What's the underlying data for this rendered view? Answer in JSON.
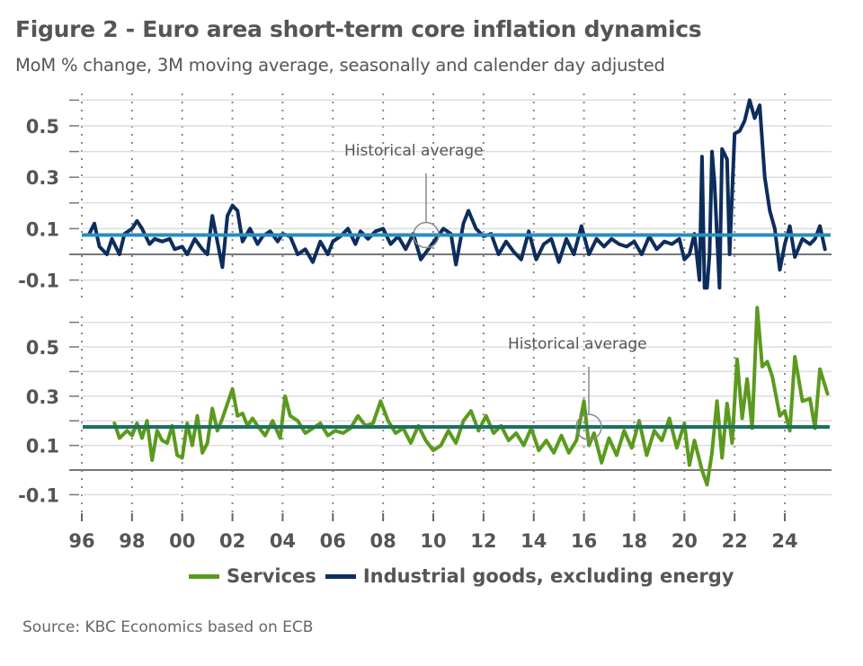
{
  "title": "Figure 2 - Euro area short-term core inflation dynamics",
  "subtitle": "MoM % change, 3M moving average, seasonally and calender day adjusted",
  "source": "Source: KBC Economics based on ECB",
  "colors": {
    "services": "#5b9a1e",
    "services_avg": "#1c7161",
    "industrial": "#0d2d5c",
    "industrial_avg": "#2a8cc0",
    "zero_line": "#777777",
    "grid": "#dddddd",
    "text": "#555555"
  },
  "legend": [
    {
      "label": "Services",
      "color": "#5b9a1e"
    },
    {
      "label": "Industrial goods, excluding energy",
      "color": "#0d2d5c"
    }
  ],
  "chart_data": [
    {
      "type": "line",
      "panel": "top",
      "title": "Industrial goods, excluding energy",
      "xlabel": "",
      "ylabel": "",
      "xlim": [
        1996,
        2026
      ],
      "ylim": [
        -0.15,
        0.6
      ],
      "yticks": [
        0.5,
        0.3,
        0.1,
        -0.1
      ],
      "ytick_labels": [
        "0.5",
        "0.3",
        "0.1",
        "-0.1"
      ],
      "grid": true,
      "annotation": {
        "text": "Historical average",
        "x": 2009.9,
        "y": 0.075
      },
      "historical_average": 0.075,
      "series": [
        {
          "name": "Industrial goods, excluding energy",
          "x": [
            1996.3,
            1996.5,
            1996.7,
            1997.0,
            1997.2,
            1997.5,
            1997.7,
            1998.0,
            1998.2,
            1998.4,
            1998.7,
            1998.9,
            1999.2,
            1999.5,
            1999.7,
            2000.0,
            2000.2,
            2000.5,
            2000.8,
            2001.0,
            2001.2,
            2001.4,
            2001.6,
            2001.8,
            2002.0,
            2002.2,
            2002.4,
            2002.7,
            2003.0,
            2003.2,
            2003.5,
            2003.8,
            2004.0,
            2004.3,
            2004.6,
            2004.9,
            2005.2,
            2005.5,
            2005.8,
            2006.0,
            2006.3,
            2006.6,
            2006.9,
            2007.1,
            2007.4,
            2007.7,
            2008.0,
            2008.3,
            2008.6,
            2008.9,
            2009.2,
            2009.5,
            2009.8,
            2010.1,
            2010.4,
            2010.7,
            2010.9,
            2011.2,
            2011.4,
            2011.7,
            2012.0,
            2012.3,
            2012.6,
            2012.9,
            2013.2,
            2013.5,
            2013.8,
            2014.1,
            2014.4,
            2014.7,
            2015.0,
            2015.3,
            2015.6,
            2015.9,
            2016.2,
            2016.5,
            2016.8,
            2017.1,
            2017.4,
            2017.7,
            2018.0,
            2018.3,
            2018.6,
            2018.9,
            2019.2,
            2019.5,
            2019.8,
            2020.0,
            2020.2,
            2020.4,
            2020.6,
            2020.7,
            2020.8,
            2020.9,
            2021.0,
            2021.1,
            2021.2,
            2021.4,
            2021.5,
            2021.7,
            2021.8,
            2022.0,
            2022.2,
            2022.4,
            2022.6,
            2022.8,
            2023.0,
            2023.2,
            2023.4,
            2023.6,
            2023.8,
            2024.0,
            2024.2,
            2024.4,
            2024.7,
            2025.0,
            2025.2,
            2025.4,
            2025.6
          ],
          "y": [
            0.08,
            0.12,
            0.03,
            0.0,
            0.06,
            0.0,
            0.08,
            0.1,
            0.13,
            0.1,
            0.04,
            0.06,
            0.05,
            0.06,
            0.02,
            0.03,
            0.0,
            0.06,
            0.02,
            0.0,
            0.15,
            0.05,
            -0.05,
            0.15,
            0.19,
            0.17,
            0.05,
            0.1,
            0.04,
            0.07,
            0.09,
            0.05,
            0.08,
            0.07,
            0.0,
            0.02,
            -0.03,
            0.05,
            0.0,
            0.05,
            0.07,
            0.1,
            0.04,
            0.09,
            0.06,
            0.09,
            0.1,
            0.04,
            0.07,
            0.02,
            0.08,
            -0.02,
            0.02,
            0.06,
            0.1,
            0.08,
            -0.04,
            0.12,
            0.17,
            0.1,
            0.07,
            0.08,
            0.0,
            0.05,
            0.01,
            -0.02,
            0.09,
            -0.02,
            0.04,
            0.06,
            -0.03,
            0.06,
            0.0,
            0.11,
            0.0,
            0.06,
            0.03,
            0.06,
            0.04,
            0.03,
            0.05,
            0.0,
            0.07,
            0.02,
            0.05,
            0.04,
            0.06,
            -0.02,
            0.0,
            0.08,
            -0.1,
            0.38,
            -0.13,
            -0.13,
            0.0,
            0.4,
            0.28,
            -0.13,
            0.41,
            0.37,
            0.0,
            0.47,
            0.48,
            0.52,
            0.6,
            0.53,
            0.58,
            0.3,
            0.17,
            0.1,
            -0.06,
            0.04,
            0.11,
            -0.01,
            0.06,
            0.04,
            0.06,
            0.11,
            0.02
          ]
        }
      ]
    },
    {
      "type": "line",
      "panel": "bottom",
      "title": "Services",
      "xlabel": "",
      "ylabel": "",
      "xlim": [
        1996,
        2026
      ],
      "ylim": [
        -0.15,
        0.6
      ],
      "yticks": [
        0.5,
        0.3,
        0.1,
        -0.1
      ],
      "ytick_labels": [
        "0.5",
        "0.3",
        "0.1",
        "-0.1"
      ],
      "xticks": [
        1996,
        1998,
        2000,
        2002,
        2004,
        2006,
        2008,
        2010,
        2012,
        2014,
        2016,
        2018,
        2020,
        2022,
        2024
      ],
      "xtick_labels": [
        "96",
        "98",
        "00",
        "02",
        "04",
        "06",
        "08",
        "10",
        "12",
        "14",
        "16",
        "18",
        "20",
        "22",
        "24"
      ],
      "grid": true,
      "annotation": {
        "text": "Historical average",
        "x": 2016.3,
        "y": 0.175
      },
      "historical_average": 0.175,
      "series": [
        {
          "name": "Services",
          "x": [
            1997.3,
            1997.5,
            1997.8,
            1998.0,
            1998.2,
            1998.4,
            1998.6,
            1998.8,
            1999.0,
            1999.2,
            1999.4,
            1999.6,
            1999.8,
            2000.0,
            2000.2,
            2000.4,
            2000.6,
            2000.8,
            2001.0,
            2001.2,
            2001.4,
            2001.6,
            2001.8,
            2002.0,
            2002.2,
            2002.4,
            2002.6,
            2002.8,
            2003.0,
            2003.3,
            2003.6,
            2003.9,
            2004.1,
            2004.3,
            2004.6,
            2004.9,
            2005.2,
            2005.5,
            2005.8,
            2006.1,
            2006.4,
            2006.7,
            2007.0,
            2007.3,
            2007.6,
            2007.9,
            2008.2,
            2008.5,
            2008.8,
            2009.1,
            2009.4,
            2009.7,
            2010.0,
            2010.3,
            2010.6,
            2010.9,
            2011.2,
            2011.5,
            2011.8,
            2012.1,
            2012.4,
            2012.7,
            2013.0,
            2013.3,
            2013.6,
            2013.9,
            2014.2,
            2014.5,
            2014.8,
            2015.1,
            2015.4,
            2015.7,
            2016.0,
            2016.2,
            2016.4,
            2016.7,
            2017.0,
            2017.3,
            2017.6,
            2017.9,
            2018.2,
            2018.5,
            2018.8,
            2019.1,
            2019.4,
            2019.7,
            2020.0,
            2020.2,
            2020.4,
            2020.7,
            2020.9,
            2021.1,
            2021.3,
            2021.5,
            2021.7,
            2021.9,
            2022.1,
            2022.3,
            2022.5,
            2022.7,
            2022.9,
            2023.1,
            2023.3,
            2023.5,
            2023.8,
            2024.0,
            2024.2,
            2024.4,
            2024.7,
            2025.0,
            2025.2,
            2025.4,
            2025.7
          ],
          "y": [
            0.19,
            0.13,
            0.16,
            0.14,
            0.19,
            0.13,
            0.2,
            0.04,
            0.16,
            0.12,
            0.11,
            0.18,
            0.06,
            0.05,
            0.19,
            0.1,
            0.22,
            0.07,
            0.11,
            0.25,
            0.16,
            0.21,
            0.27,
            0.33,
            0.22,
            0.23,
            0.18,
            0.21,
            0.18,
            0.14,
            0.2,
            0.13,
            0.3,
            0.22,
            0.2,
            0.15,
            0.17,
            0.19,
            0.14,
            0.16,
            0.15,
            0.17,
            0.22,
            0.18,
            0.19,
            0.28,
            0.2,
            0.15,
            0.17,
            0.11,
            0.18,
            0.12,
            0.08,
            0.1,
            0.16,
            0.11,
            0.2,
            0.24,
            0.16,
            0.22,
            0.15,
            0.18,
            0.12,
            0.15,
            0.1,
            0.17,
            0.08,
            0.12,
            0.07,
            0.14,
            0.07,
            0.12,
            0.28,
            0.1,
            0.15,
            0.03,
            0.13,
            0.06,
            0.16,
            0.09,
            0.2,
            0.06,
            0.16,
            0.12,
            0.21,
            0.09,
            0.19,
            0.02,
            0.12,
            0.0,
            -0.06,
            0.07,
            0.28,
            0.05,
            0.27,
            0.11,
            0.45,
            0.21,
            0.37,
            0.17,
            0.66,
            0.42,
            0.44,
            0.38,
            0.22,
            0.24,
            0.16,
            0.46,
            0.28,
            0.29,
            0.17,
            0.41,
            0.31
          ]
        }
      ]
    }
  ]
}
